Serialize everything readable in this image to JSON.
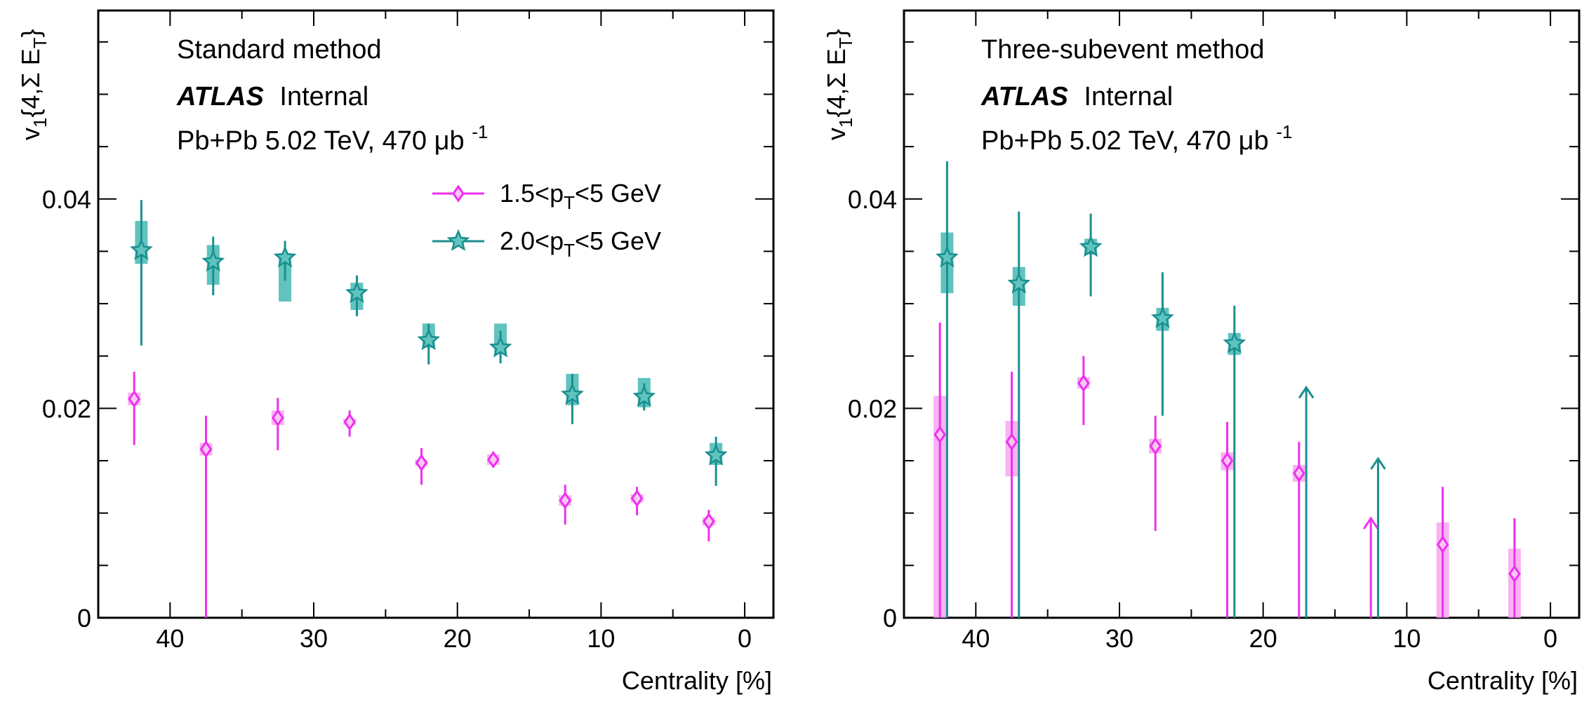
{
  "colors": {
    "magenta": "#ee30ee",
    "teal": "#1a8f8f",
    "teal_box": "#4fbdb7",
    "magenta_box": "#f7a6f0"
  },
  "chart_data": [
    {
      "type": "scatter",
      "panel": "left",
      "annotations": [
        "Standard method",
        "ATLAS",
        "Internal",
        "Pb+Pb 5.02 TeV, 470 μb",
        "-1"
      ],
      "ylabel_main": "v",
      "ylabel_sub": "1",
      "ylabel_rest": "{4,Σ E",
      "ylabel_sub2": "T",
      "ylabel_end": "}",
      "xlabel": "Centrality [%]",
      "xlim": [
        45,
        -2
      ],
      "ylim": [
        0,
        0.058
      ],
      "x_reversed": true,
      "xticks": [
        "40",
        "30",
        "20",
        "10",
        "0"
      ],
      "xtick_values": [
        40,
        30,
        20,
        10,
        0
      ],
      "yticks": [
        "0",
        "0.02",
        "0.04"
      ],
      "ytick_values": [
        0,
        0.02,
        0.04
      ],
      "legend": [
        {
          "pre": "1.5<p",
          "sub": "T",
          "post": "<5 GeV",
          "color": "#ee30ee",
          "marker": "diamond"
        },
        {
          "pre": "2.0<p",
          "sub": "T",
          "post": "<5 GeV",
          "color": "#1a8f8f",
          "marker": "star"
        }
      ],
      "series": [
        {
          "name": "1.5<pT<5 GeV",
          "marker": "diamond",
          "points": [
            {
              "x": 42.5,
              "y": 0.0209,
              "lo": 0.0165,
              "hi": 0.0235,
              "slo": 0.0203,
              "shi": 0.0215
            },
            {
              "x": 37.5,
              "y": 0.0161,
              "lo": 0.0,
              "hi": 0.0193,
              "slo": 0.0155,
              "shi": 0.0167
            },
            {
              "x": 32.5,
              "y": 0.0191,
              "lo": 0.016,
              "hi": 0.021,
              "slo": 0.0184,
              "shi": 0.0198
            },
            {
              "x": 27.5,
              "y": 0.0187,
              "lo": 0.0173,
              "hi": 0.0198,
              "slo": 0.0184,
              "shi": 0.019
            },
            {
              "x": 22.5,
              "y": 0.0148,
              "lo": 0.0127,
              "hi": 0.0162,
              "slo": 0.0145,
              "shi": 0.0151
            },
            {
              "x": 17.5,
              "y": 0.0151,
              "lo": 0.0145,
              "hi": 0.0158,
              "slo": 0.0146,
              "shi": 0.0156
            },
            {
              "x": 12.5,
              "y": 0.0112,
              "lo": 0.0089,
              "hi": 0.0127,
              "slo": 0.0107,
              "shi": 0.0117
            },
            {
              "x": 7.5,
              "y": 0.0114,
              "lo": 0.0098,
              "hi": 0.0125,
              "slo": 0.011,
              "shi": 0.0118
            },
            {
              "x": 2.5,
              "y": 0.0092,
              "lo": 0.0073,
              "hi": 0.0103,
              "slo": 0.0088,
              "shi": 0.0096
            }
          ]
        },
        {
          "name": "2.0<pT<5 GeV",
          "marker": "star",
          "points": [
            {
              "x": 42.0,
              "y": 0.0351,
              "lo": 0.026,
              "hi": 0.0399,
              "slo": 0.0338,
              "shi": 0.0379
            },
            {
              "x": 37.0,
              "y": 0.034,
              "lo": 0.0308,
              "hi": 0.0364,
              "slo": 0.0318,
              "shi": 0.0356
            },
            {
              "x": 32.0,
              "y": 0.0344,
              "lo": 0.0322,
              "hi": 0.036,
              "slo": 0.0302,
              "shi": 0.0346
            },
            {
              "x": 27.0,
              "y": 0.031,
              "lo": 0.0288,
              "hi": 0.0327,
              "slo": 0.0294,
              "shi": 0.032
            },
            {
              "x": 22.0,
              "y": 0.0265,
              "lo": 0.0242,
              "hi": 0.0281,
              "slo": 0.0258,
              "shi": 0.0281
            },
            {
              "x": 17.0,
              "y": 0.0258,
              "lo": 0.0243,
              "hi": 0.0274,
              "slo": 0.0253,
              "shi": 0.0281
            },
            {
              "x": 12.0,
              "y": 0.0213,
              "lo": 0.0185,
              "hi": 0.0233,
              "slo": 0.0203,
              "shi": 0.0233
            },
            {
              "x": 7.0,
              "y": 0.0211,
              "lo": 0.0198,
              "hi": 0.0224,
              "slo": 0.0201,
              "shi": 0.0229
            },
            {
              "x": 2.0,
              "y": 0.0155,
              "lo": 0.0126,
              "hi": 0.0173,
              "slo": 0.0146,
              "shi": 0.0167
            }
          ]
        }
      ]
    },
    {
      "type": "scatter",
      "panel": "right",
      "annotations": [
        "Three-subevent method",
        "ATLAS",
        "Internal",
        "Pb+Pb 5.02 TeV, 470 μb",
        "-1"
      ],
      "ylabel_main": "v",
      "ylabel_sub": "1",
      "ylabel_rest": "{4,Σ E",
      "ylabel_sub2": "T",
      "ylabel_end": "}",
      "xlabel": "Centrality [%]",
      "xlim": [
        45,
        -2
      ],
      "ylim": [
        0,
        0.058
      ],
      "x_reversed": true,
      "xticks": [
        "40",
        "30",
        "20",
        "10",
        "0"
      ],
      "xtick_values": [
        40,
        30,
        20,
        10,
        0
      ],
      "yticks": [
        "0",
        "0.02",
        "0.04"
      ],
      "ytick_values": [
        0,
        0.02,
        0.04
      ],
      "series": [
        {
          "name": "1.5<pT<5 GeV",
          "marker": "diamond",
          "points": [
            {
              "x": 42.5,
              "y": 0.0175,
              "lo": 0.0,
              "hi": 0.0282,
              "slo": 0.0,
              "shi": 0.0212
            },
            {
              "x": 37.5,
              "y": 0.0168,
              "lo": 0.0,
              "hi": 0.0235,
              "slo": 0.0135,
              "shi": 0.0188
            },
            {
              "x": 32.5,
              "y": 0.0224,
              "lo": 0.0184,
              "hi": 0.025,
              "slo": 0.0219,
              "shi": 0.023
            },
            {
              "x": 27.5,
              "y": 0.0164,
              "lo": 0.0083,
              "hi": 0.0193,
              "slo": 0.0157,
              "shi": 0.0171
            },
            {
              "x": 22.5,
              "y": 0.015,
              "lo": 0.0,
              "hi": 0.0187,
              "slo": 0.0141,
              "shi": 0.0158
            },
            {
              "x": 17.5,
              "y": 0.0138,
              "lo": 0.0,
              "hi": 0.0168,
              "slo": 0.013,
              "shi": 0.0146
            },
            {
              "x": 12.5,
              "y": null,
              "lo": 0.0,
              "hi": 0.0095,
              "slo": null,
              "shi": null,
              "arrow": true
            },
            {
              "x": 7.5,
              "y": 0.007,
              "lo": 0.0,
              "hi": 0.0125,
              "slo": 0.0,
              "shi": 0.0091
            },
            {
              "x": 2.5,
              "y": 0.0042,
              "lo": 0.0,
              "hi": 0.0095,
              "slo": 0.0,
              "shi": 0.0066
            }
          ]
        },
        {
          "name": "2.0<pT<5 GeV",
          "marker": "star",
          "points": [
            {
              "x": 42.0,
              "y": 0.0344,
              "lo": 0.0,
              "hi": 0.0436,
              "slo": 0.031,
              "shi": 0.0368
            },
            {
              "x": 37.0,
              "y": 0.0319,
              "lo": 0.0,
              "hi": 0.0388,
              "slo": 0.0298,
              "shi": 0.0335
            },
            {
              "x": 32.0,
              "y": 0.0354,
              "lo": 0.0307,
              "hi": 0.0386,
              "slo": 0.0347,
              "shi": 0.0362
            },
            {
              "x": 27.0,
              "y": 0.0286,
              "lo": 0.0193,
              "hi": 0.033,
              "slo": 0.0274,
              "shi": 0.0296
            },
            {
              "x": 22.0,
              "y": 0.0262,
              "lo": 0.0,
              "hi": 0.0298,
              "slo": 0.0251,
              "shi": 0.0272
            },
            {
              "x": 17.0,
              "y": null,
              "lo": 0.0,
              "hi": 0.022,
              "slo": null,
              "shi": null,
              "arrow": true
            },
            {
              "x": 12.0,
              "y": null,
              "lo": 0.0,
              "hi": 0.0152,
              "slo": null,
              "shi": null,
              "arrow": true
            }
          ]
        }
      ]
    }
  ]
}
